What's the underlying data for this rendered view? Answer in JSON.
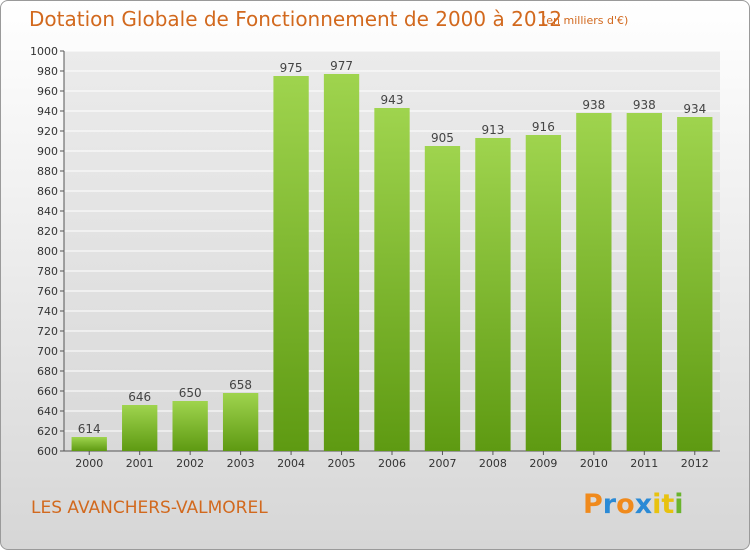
{
  "chart_data": {
    "type": "bar",
    "title": "Dotation Globale de Fonctionnement de 2000 à 2012",
    "unit": "(en milliers d'€)",
    "categories": [
      "2000",
      "2001",
      "2002",
      "2003",
      "2004",
      "2005",
      "2006",
      "2007",
      "2008",
      "2009",
      "2010",
      "2011",
      "2012"
    ],
    "values": [
      614,
      646,
      650,
      658,
      975,
      977,
      943,
      905,
      913,
      916,
      938,
      938,
      934
    ],
    "value_labels": [
      "614",
      "646",
      "650",
      "658",
      "975",
      "977",
      "943",
      "905",
      "913",
      "916",
      "938",
      "938",
      "934"
    ],
    "ylim": [
      600,
      1000
    ],
    "yticks": [
      600,
      620,
      640,
      660,
      680,
      700,
      720,
      740,
      760,
      780,
      800,
      820,
      840,
      860,
      880,
      900,
      920,
      940,
      960,
      980,
      1000
    ],
    "grid": true,
    "legend": "none"
  },
  "footer": {
    "city": "LES AVANCHERS-VALMOREL",
    "logo_text": "Proxiti"
  },
  "colors": {
    "title": "#d2691e",
    "bar_top": "#9fd44e",
    "bar_bottom": "#5e9a12",
    "logo_letters": [
      "#f08a1c",
      "#2a8ad6",
      "#f08a1c",
      "#2a8ad6",
      "#e8c20f",
      "#e8c20f",
      "#6ab42d"
    ]
  }
}
